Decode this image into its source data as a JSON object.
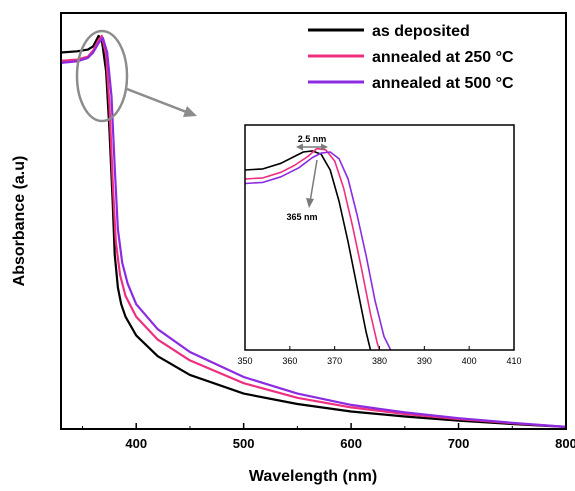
{
  "chart_data": [
    {
      "type": "line",
      "title": "",
      "xlabel": "Wavelength (nm)",
      "ylabel": "Absorbance (a.u)",
      "xlim": [
        330,
        800
      ],
      "ylim": [
        0,
        1
      ],
      "x_ticks": [
        "400",
        "500",
        "600",
        "700",
        "800"
      ],
      "grid": false,
      "legend_position": "top-right",
      "series": [
        {
          "name": "as deposited",
          "color": "#000000",
          "x": [
            330,
            345,
            355,
            360,
            365,
            368,
            372,
            375,
            378,
            380,
            383,
            386,
            390,
            400,
            420,
            450,
            500,
            550,
            600,
            650,
            700,
            750,
            800
          ],
          "y": [
            0.905,
            0.908,
            0.912,
            0.92,
            0.945,
            0.935,
            0.86,
            0.72,
            0.55,
            0.42,
            0.34,
            0.3,
            0.27,
            0.225,
            0.175,
            0.13,
            0.085,
            0.06,
            0.042,
            0.03,
            0.02,
            0.012,
            0.005
          ]
        },
        {
          "name": "annealed at 250 °C",
          "color": "#ee2f7f",
          "x": [
            330,
            345,
            355,
            360,
            365,
            368,
            372,
            375,
            378,
            381,
            385,
            390,
            400,
            420,
            450,
            500,
            550,
            600,
            650,
            700,
            750,
            800
          ],
          "y": [
            0.885,
            0.888,
            0.895,
            0.91,
            0.935,
            0.945,
            0.9,
            0.78,
            0.6,
            0.45,
            0.37,
            0.32,
            0.27,
            0.215,
            0.165,
            0.11,
            0.075,
            0.052,
            0.036,
            0.024,
            0.014,
            0.005
          ]
        },
        {
          "name": "annealed at 500 °C",
          "color": "#8b2be2",
          "x": [
            330,
            345,
            355,
            360,
            365,
            369,
            373,
            377,
            380,
            383,
            387,
            392,
            400,
            420,
            450,
            500,
            550,
            600,
            650,
            700,
            750,
            800
          ],
          "y": [
            0.88,
            0.884,
            0.892,
            0.905,
            0.928,
            0.94,
            0.905,
            0.8,
            0.63,
            0.48,
            0.4,
            0.35,
            0.3,
            0.24,
            0.185,
            0.125,
            0.085,
            0.058,
            0.04,
            0.026,
            0.015,
            0.005
          ]
        }
      ]
    },
    {
      "type": "line",
      "title": "",
      "xlim": [
        350,
        410
      ],
      "ylim": [
        0,
        1
      ],
      "x_ticks": [
        "350",
        "360",
        "370",
        "380",
        "390",
        "400",
        "410"
      ],
      "annotations": [
        "2.5 nm",
        "365 nm"
      ],
      "series": [
        {
          "name": "as deposited",
          "color": "#000000",
          "x": [
            350,
            354,
            358,
            361,
            363,
            365,
            367,
            369,
            371,
            373,
            375,
            377,
            378
          ],
          "y": [
            0.8,
            0.805,
            0.83,
            0.86,
            0.88,
            0.885,
            0.87,
            0.8,
            0.66,
            0.48,
            0.28,
            0.08,
            0.0
          ]
        },
        {
          "name": "annealed at 250 °C",
          "color": "#ee2f7f",
          "x": [
            350,
            354,
            358,
            361,
            364,
            366,
            368,
            370,
            372,
            374,
            376,
            378,
            379.5,
            380
          ],
          "y": [
            0.76,
            0.765,
            0.79,
            0.82,
            0.86,
            0.895,
            0.89,
            0.84,
            0.72,
            0.55,
            0.36,
            0.16,
            0.03,
            0.0
          ]
        },
        {
          "name": "annealed at 500 °C",
          "color": "#8b2be2",
          "x": [
            350,
            354,
            358,
            362,
            365,
            367,
            369,
            371,
            373,
            375,
            377,
            379,
            381,
            382.5
          ],
          "y": [
            0.74,
            0.745,
            0.77,
            0.81,
            0.855,
            0.875,
            0.88,
            0.85,
            0.76,
            0.6,
            0.42,
            0.22,
            0.06,
            0.0
          ]
        }
      ]
    }
  ]
}
